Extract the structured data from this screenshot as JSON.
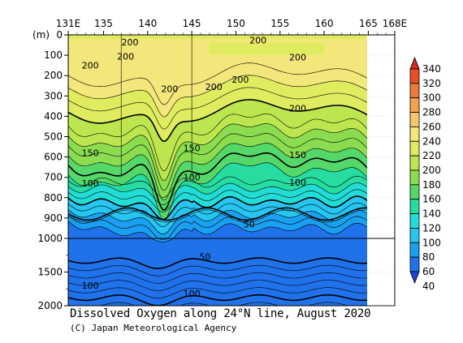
{
  "chart_data": {
    "type": "contour section",
    "title": "Dissolved Oxygen along 24°N line, August 2020",
    "credit": "(C) Japan Meteorological Agency",
    "x_tick_labels": [
      "131E",
      "135",
      "140",
      "145",
      "150",
      "155",
      "160",
      "165",
      "168E"
    ],
    "x_tick_values": [
      131,
      135,
      140,
      145,
      150,
      155,
      160,
      165,
      168
    ],
    "xlim": [
      131,
      168
    ],
    "y_unit_label": "(m)",
    "y_tick_labels": [
      "0",
      "100",
      "200",
      "300",
      "400",
      "500",
      "600",
      "700",
      "800",
      "900",
      "1000",
      "1500",
      "2000"
    ],
    "y_axis_break": "linear 0-1000 m in upper part, compressed 1000-2000 m in lower part",
    "data_extent_east": 165,
    "colorbar_levels": [
      40,
      60,
      80,
      100,
      120,
      140,
      160,
      180,
      200,
      220,
      240,
      260,
      280,
      300,
      320,
      340
    ],
    "colorbar_colors": [
      "#1e3fd8",
      "#1f72ea",
      "#1aa0f0",
      "#26c6f0",
      "#22ddd6",
      "#26dca0",
      "#55d86a",
      "#8cdc50",
      "#bde64e",
      "#e0ec60",
      "#f3e67a",
      "#f6c86a",
      "#f4a24e",
      "#f0783a",
      "#e64e2a",
      "#d02a1e"
    ],
    "contour_labels": [
      {
        "text": "200",
        "lon": 138,
        "depth": 35
      },
      {
        "text": "200",
        "lon": 152.5,
        "depth": 25
      },
      {
        "text": "200",
        "lon": 133.5,
        "depth": 150
      },
      {
        "text": "200",
        "lon": 137.5,
        "depth": 105
      },
      {
        "text": "200",
        "lon": 157,
        "depth": 110
      },
      {
        "text": "200",
        "lon": 142.5,
        "depth": 265
      },
      {
        "text": "200",
        "lon": 147.5,
        "depth": 255
      },
      {
        "text": "200",
        "lon": 150.5,
        "depth": 220
      },
      {
        "text": "200",
        "lon": 157,
        "depth": 360
      },
      {
        "text": "150",
        "lon": 133.5,
        "depth": 580
      },
      {
        "text": "150",
        "lon": 145,
        "depth": 555
      },
      {
        "text": "150",
        "lon": 157,
        "depth": 590
      },
      {
        "text": "100",
        "lon": 133.5,
        "depth": 730
      },
      {
        "text": "100",
        "lon": 145,
        "depth": 700
      },
      {
        "text": "100",
        "lon": 157,
        "depth": 725
      },
      {
        "text": "50",
        "lon": 151.5,
        "depth": 930
      },
      {
        "text": "50",
        "lon": 146.5,
        "depth": 1270
      },
      {
        "text": "100",
        "lon": 133.5,
        "depth": 1700
      },
      {
        "text": "100",
        "lon": 145,
        "depth": 1820
      }
    ]
  }
}
